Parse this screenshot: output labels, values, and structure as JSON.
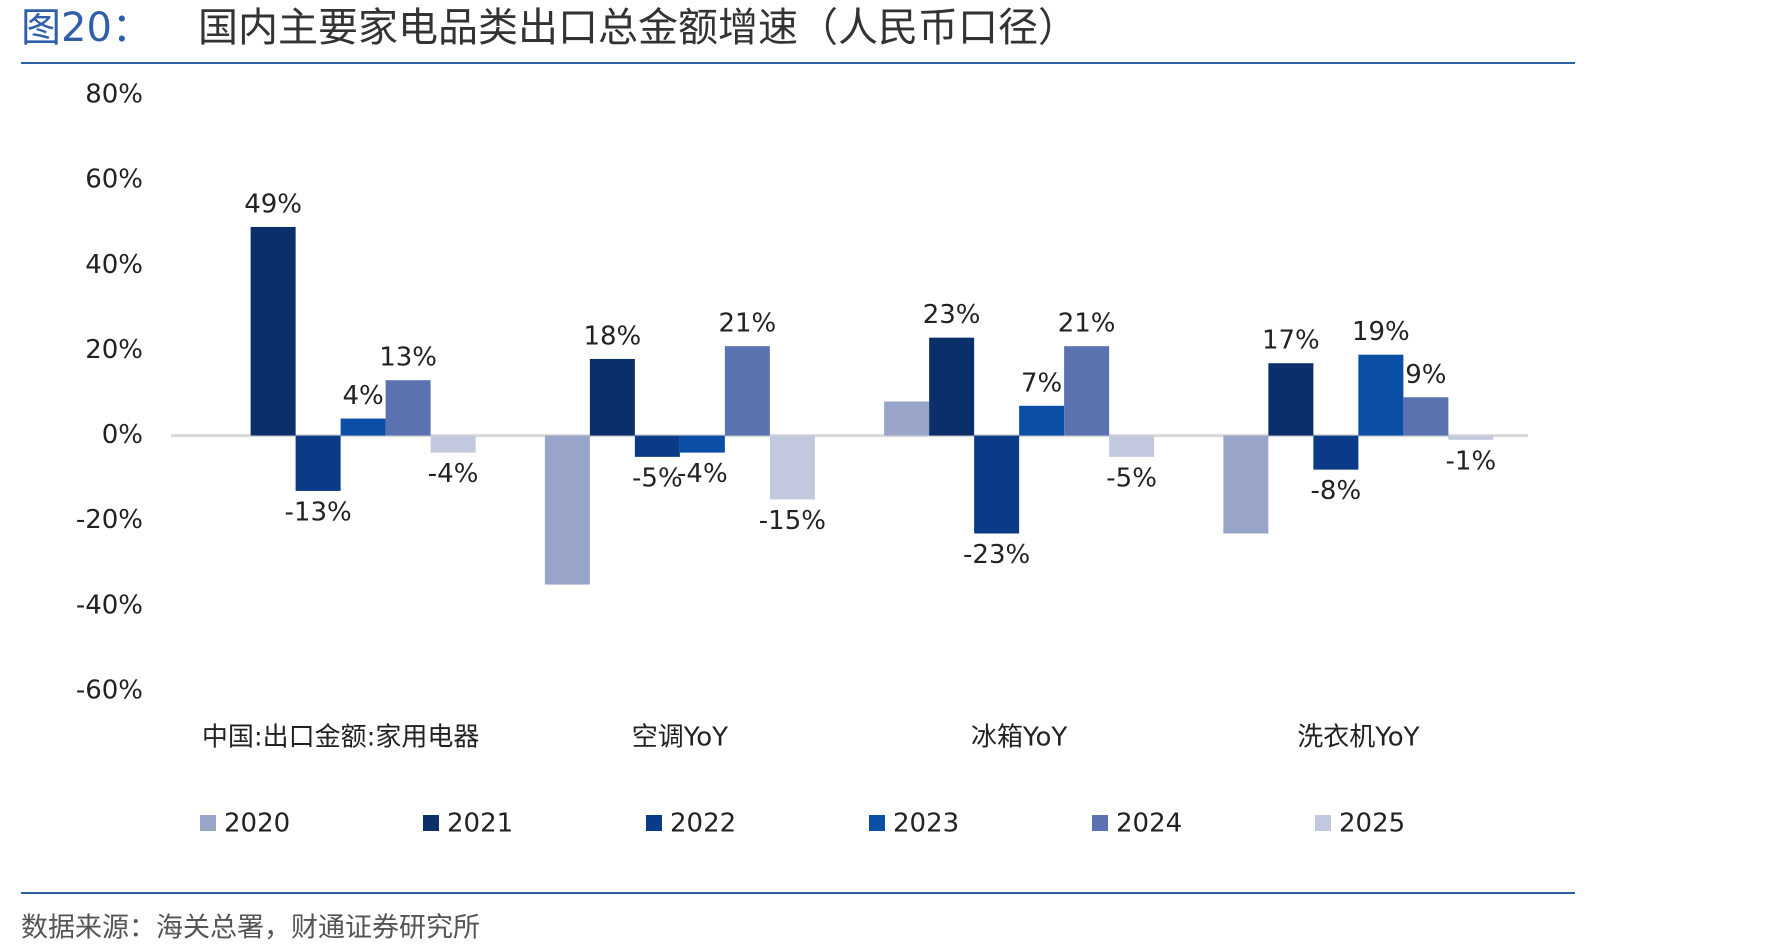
{
  "fig_label": "图20：",
  "source": "数据来源：海关总署，财通证券研究所",
  "chart_data": {
    "type": "bar",
    "title": "国内主要家电品类出口总金额增速（人民币口径）",
    "categories": [
      "中国:出口金额:家用电器",
      "空调YoY",
      "冰箱YoY",
      "洗衣机YoY"
    ],
    "series": [
      {
        "name": "2020",
        "color": "#98a4c8",
        "values": [
          null,
          -35,
          8,
          -23
        ]
      },
      {
        "name": "2021",
        "color": "#0b2f6b",
        "values": [
          49,
          18,
          23,
          17
        ],
        "value_labels": [
          "49%",
          "18%",
          "23%",
          "17%"
        ]
      },
      {
        "name": "2022",
        "color": "#0a3a88",
        "values": [
          -13,
          -5,
          -23,
          -8
        ],
        "value_labels": [
          "-13%",
          "-5%",
          "-23%",
          "-8%"
        ]
      },
      {
        "name": "2023",
        "color": "#0a4ea6",
        "values": [
          4,
          -4,
          7,
          19
        ],
        "value_labels": [
          "4%",
          "-4%",
          "7%",
          "19%"
        ]
      },
      {
        "name": "2024",
        "color": "#5b72b0",
        "values": [
          13,
          21,
          21,
          9
        ],
        "value_labels": [
          "13%",
          "21%",
          "21%",
          "9%"
        ]
      },
      {
        "name": "2025",
        "color": "#c2c8de",
        "values": [
          -4,
          -15,
          -5,
          -1
        ],
        "value_labels": [
          "-4%",
          "-15%",
          "-5%",
          "-1%"
        ]
      }
    ],
    "ylim": [
      -60,
      80
    ],
    "yticks": [
      {
        "value": -60,
        "label": "-60%"
      },
      {
        "value": -40,
        "label": "-40%"
      },
      {
        "value": -20,
        "label": "-20%"
      },
      {
        "value": 0,
        "label": "0%"
      },
      {
        "value": 20,
        "label": "20%"
      },
      {
        "value": 40,
        "label": "40%"
      },
      {
        "value": 60,
        "label": "60%"
      },
      {
        "value": 80,
        "label": "80%"
      }
    ],
    "legend": "bottom"
  }
}
